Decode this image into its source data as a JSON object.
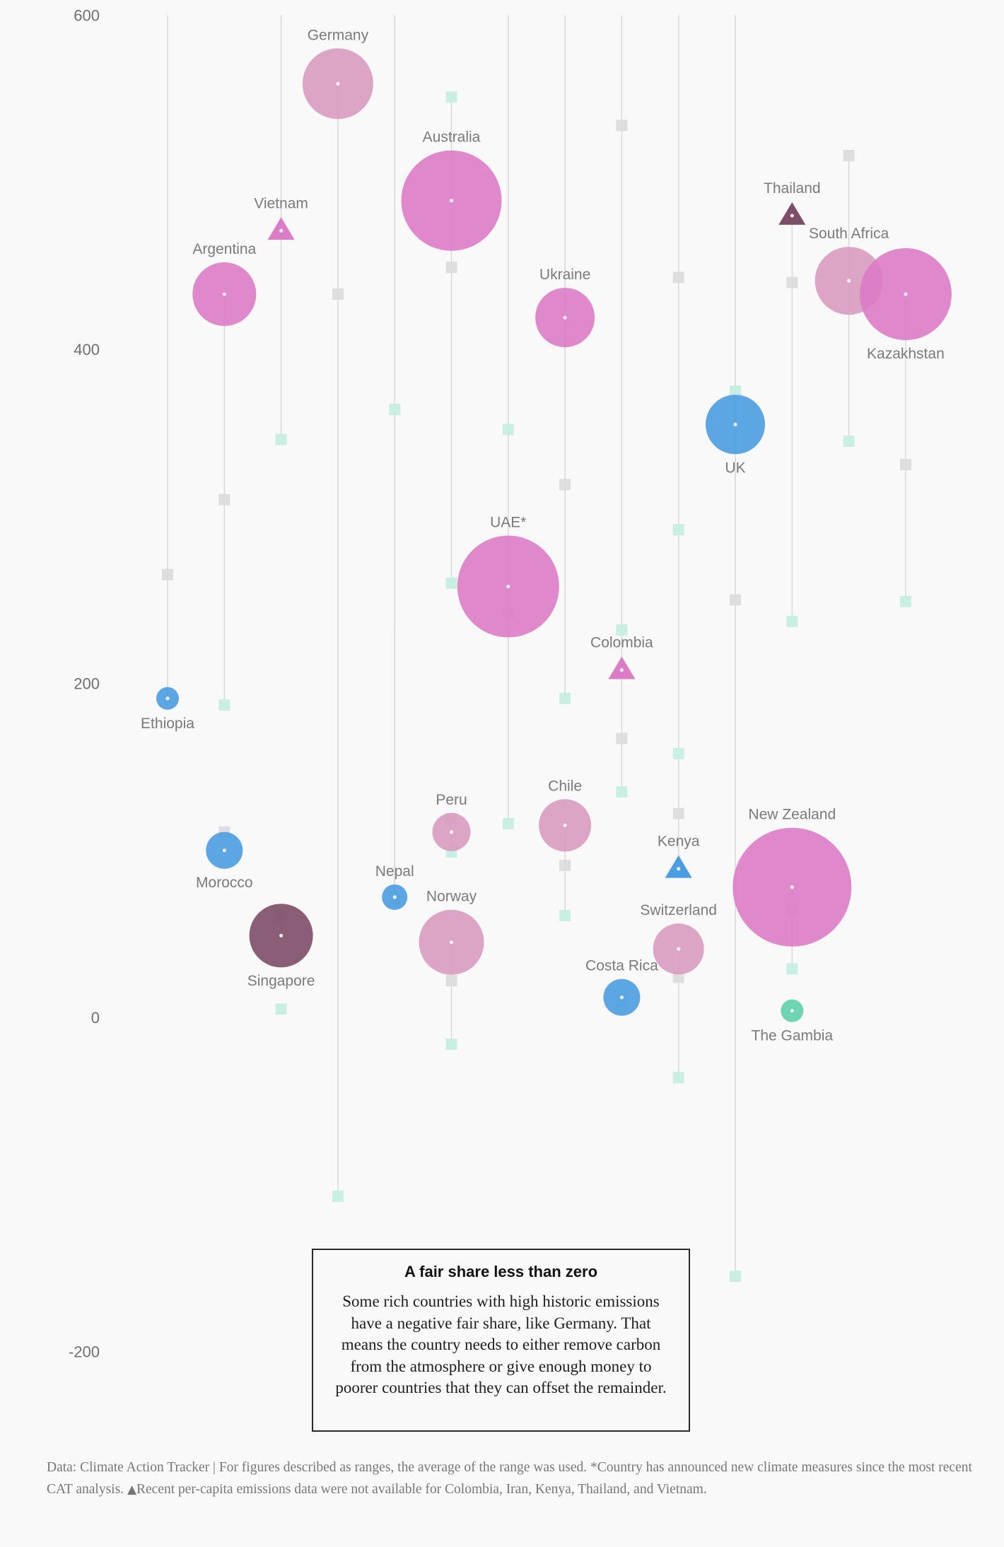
{
  "chart_data": {
    "type": "scatter",
    "title": "",
    "xlabel": "",
    "ylabel": "",
    "ylim": [
      -260,
      600
    ],
    "yticks": [
      600,
      400,
      200,
      0,
      -200
    ],
    "grid": false,
    "legend": "none",
    "colors": {
      "circle_blue": "#4a9de0",
      "circle_pink_light": "#d89bc0",
      "circle_pink": "#dc7bc6",
      "circle_plum": "#7e4d68",
      "circle_teal": "#5fcfac",
      "marker_gray": "#dcdcdc",
      "marker_mint": "#c6ede1",
      "stem_line": "#d7d7d7"
    },
    "countries": [
      {
        "name": "Ethiopia",
        "col": 0,
        "value": 191,
        "size": 16,
        "shape": "circle",
        "color": "circle_blue",
        "label_pos": "below",
        "gray": 265,
        "mint": null,
        "stem": [
          191,
          600
        ]
      },
      {
        "name": "Morocco",
        "col": 1,
        "value": 100,
        "size": 26,
        "shape": "circle",
        "color": "circle_blue",
        "label_pos": "below",
        "gray": 111,
        "mint": null,
        "stem": null
      },
      {
        "name": "Argentina",
        "col": 1,
        "value": 433,
        "size": 45,
        "shape": "circle",
        "color": "circle_pink",
        "label_pos": "above",
        "gray": 310,
        "mint": 187,
        "stem": [
          187,
          433
        ]
      },
      {
        "name": "Singapore",
        "col": 2,
        "value": 49,
        "size": 45,
        "shape": "circle",
        "color": "circle_plum",
        "label_pos": "below",
        "gray": 61,
        "mint": 5,
        "stem": [
          49,
          61
        ]
      },
      {
        "name": "Vietnam",
        "col": 2,
        "value": 471,
        "size": 0,
        "shape": "triangle",
        "color": "circle_pink",
        "label_pos": "above",
        "gray": null,
        "mint": 346,
        "stem": [
          346,
          600
        ]
      },
      {
        "name": "Germany",
        "col": 3,
        "value": 559,
        "size": 50,
        "shape": "circle",
        "color": "circle_pink_light",
        "label_pos": "above",
        "gray": 433,
        "mint": -107,
        "stem": [
          -107,
          559
        ]
      },
      {
        "name": "Nepal",
        "col": 4,
        "value": 72,
        "size": 18,
        "shape": "circle",
        "color": "circle_blue",
        "label_pos": "above",
        "gray": 70,
        "mint": 364,
        "stem": [
          70,
          600
        ],
        "stem2": [
          72,
          233
        ]
      },
      {
        "name": "Australia",
        "col": 5,
        "value": 489,
        "size": 71,
        "shape": "circle",
        "color": "circle_pink",
        "label_pos": "above",
        "gray": 449,
        "mint": 551,
        "stem": [
          260,
          551
        ]
      },
      {
        "name": "Peru",
        "col": 5,
        "value": 111,
        "size": 27,
        "shape": "circle",
        "color": "circle_pink_light",
        "label_pos": "above",
        "gray": 119,
        "mint": 99,
        "stem": [
          99,
          119
        ],
        "mint_extra": 260
      },
      {
        "name": "Norway",
        "col": 5,
        "value": 45,
        "size": 46,
        "shape": "circle",
        "color": "circle_pink_light",
        "label_pos": "above",
        "gray": 22,
        "mint": -16,
        "stem": [
          -16,
          45
        ]
      },
      {
        "name": "UAE*",
        "col": 6,
        "value": 258,
        "size": 72,
        "shape": "circle",
        "color": "circle_pink",
        "label_pos": "above",
        "gray": 242,
        "mint": 116,
        "stem": [
          116,
          600
        ],
        "mint_extra": 352
      },
      {
        "name": "Ukraine",
        "col": 7,
        "value": 419,
        "size": 42,
        "shape": "circle",
        "color": "circle_pink",
        "label_pos": "above",
        "gray": 319,
        "mint": 191,
        "stem": [
          191,
          600
        ]
      },
      {
        "name": "Chile",
        "col": 7,
        "value": 115,
        "size": 37,
        "shape": "circle",
        "color": "circle_pink_light",
        "label_pos": "above",
        "gray": 91,
        "mint": 61,
        "stem": [
          61,
          115
        ]
      },
      {
        "name": "Colombia",
        "col": 8,
        "value": 208,
        "size": 0,
        "shape": "triangle",
        "color": "circle_pink",
        "label_pos": "above",
        "gray": 167,
        "mint": 135,
        "stem": [
          135,
          600
        ],
        "gray_extra": 534,
        "mint_extra": 232
      },
      {
        "name": "Costa Rica",
        "col": 8,
        "value": 12,
        "size": 26,
        "shape": "circle",
        "color": "circle_blue",
        "label_pos": "above",
        "gray": 9,
        "mint": 11,
        "stem": null
      },
      {
        "name": "Kenya",
        "col": 9,
        "value": 89,
        "size": 0,
        "shape": "triangle",
        "color": "circle_blue",
        "label_pos": "above",
        "gray": 122,
        "mint": 158,
        "stem": [
          89,
          600
        ],
        "gray_extra": 443,
        "mint_extra": 292
      },
      {
        "name": "Switzerland",
        "col": 9,
        "value": 41,
        "size": 36,
        "shape": "circle",
        "color": "circle_pink_light",
        "label_pos": "above",
        "gray": 24,
        "mint": -36,
        "stem": [
          -36,
          41
        ]
      },
      {
        "name": "UK",
        "col": 10,
        "value": 355,
        "size": 42,
        "shape": "circle",
        "color": "circle_blue",
        "label_pos": "below",
        "gray": 250,
        "mint": -155,
        "stem": [
          -155,
          600
        ],
        "mint_extra": 375
      },
      {
        "name": "Thailand",
        "col": 11,
        "value": 480,
        "size": 0,
        "shape": "triangle",
        "color": "circle_plum",
        "label_pos": "above",
        "gray": 440,
        "mint": 237,
        "stem": [
          237,
          480
        ]
      },
      {
        "name": "New Zealand",
        "col": 11,
        "value": 78,
        "size": 84,
        "shape": "circle",
        "color": "circle_pink",
        "label_pos": "above",
        "gray": 65,
        "mint": 29,
        "stem": [
          29,
          78
        ]
      },
      {
        "name": "The Gambia",
        "col": 11,
        "value": 4,
        "size": 16,
        "shape": "circle",
        "color": "circle_teal",
        "label_pos": "below",
        "gray": null,
        "mint": null,
        "stem": null
      },
      {
        "name": "South Africa",
        "col": 12,
        "value": 441,
        "size": 48,
        "shape": "circle",
        "color": "circle_pink_light",
        "label_pos": "above",
        "gray": 516,
        "mint": 345,
        "stem": [
          345,
          516
        ]
      },
      {
        "name": "Kazakhstan",
        "col": 13,
        "value": 433,
        "size": 65,
        "shape": "circle",
        "color": "circle_pink",
        "label_pos": "below",
        "gray": 331,
        "mint": 249,
        "stem": [
          249,
          433
        ]
      }
    ]
  },
  "callout": {
    "title": "A fair share less than zero",
    "body": "Some rich countries with high historic emissions have a negative fair share, like Germany. That means the country needs to either remove carbon from the atmosphere or give enough money to poorer countries that they can offset the remainder."
  },
  "footnote": {
    "text_1": "Data: Climate Action Tracker | For figures described as ranges, the average of the range was used. *Country has announced new climate measures since the most recent CAT analysis.",
    "triangle_symbol": "▲",
    "text_2": "Recent per-capita emissions data were not available for Colombia, Iran, Kenya, Thailand, and Vietnam."
  }
}
